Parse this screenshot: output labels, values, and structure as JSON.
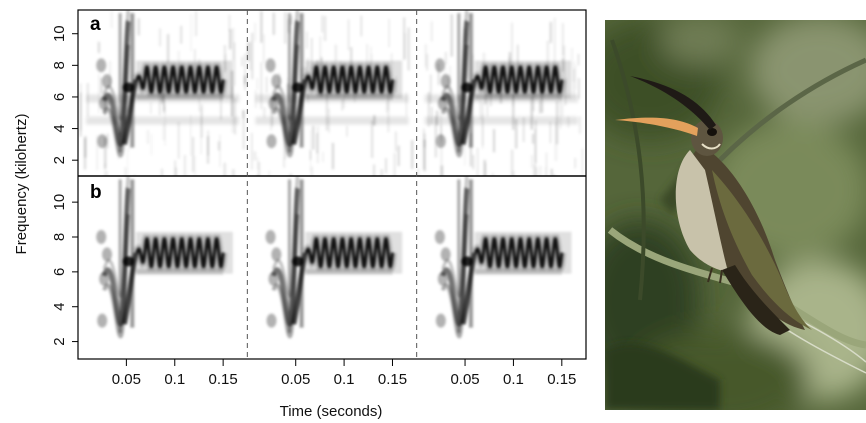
{
  "chart_data": {
    "type": "heatmap",
    "title": "",
    "xlabel": "Time (seconds)",
    "ylabel": "Frequency (kilohertz)",
    "panels": [
      {
        "label": "a",
        "background": "noisy"
      },
      {
        "label": "b",
        "background": "clean"
      }
    ],
    "segments": 3,
    "xlim": [
      0.0,
      0.175
    ],
    "ylim": [
      1.0,
      11.5
    ],
    "xticks": [
      0.05,
      0.1,
      0.15
    ],
    "xtick_labels": [
      "0.05",
      "0.1",
      "0.15"
    ],
    "yticks": [
      2,
      4,
      6,
      8,
      10
    ],
    "ytick_labels": [
      "2",
      "4",
      "6",
      "8",
      "10"
    ],
    "trill": {
      "start_s": 0.06,
      "end_s": 0.15,
      "center_khz": 7.1,
      "amplitude_khz": 0.8,
      "cycles": 10
    },
    "colors": {
      "ink": "#000000",
      "divider": "#555555"
    }
  },
  "photo": {
    "subject": "hummingbird-photo",
    "colors": {
      "background": "#5d6e3c",
      "bird": "#6b5a3a",
      "bill": "#e3a15c",
      "breast": "#c9c3a8"
    }
  }
}
